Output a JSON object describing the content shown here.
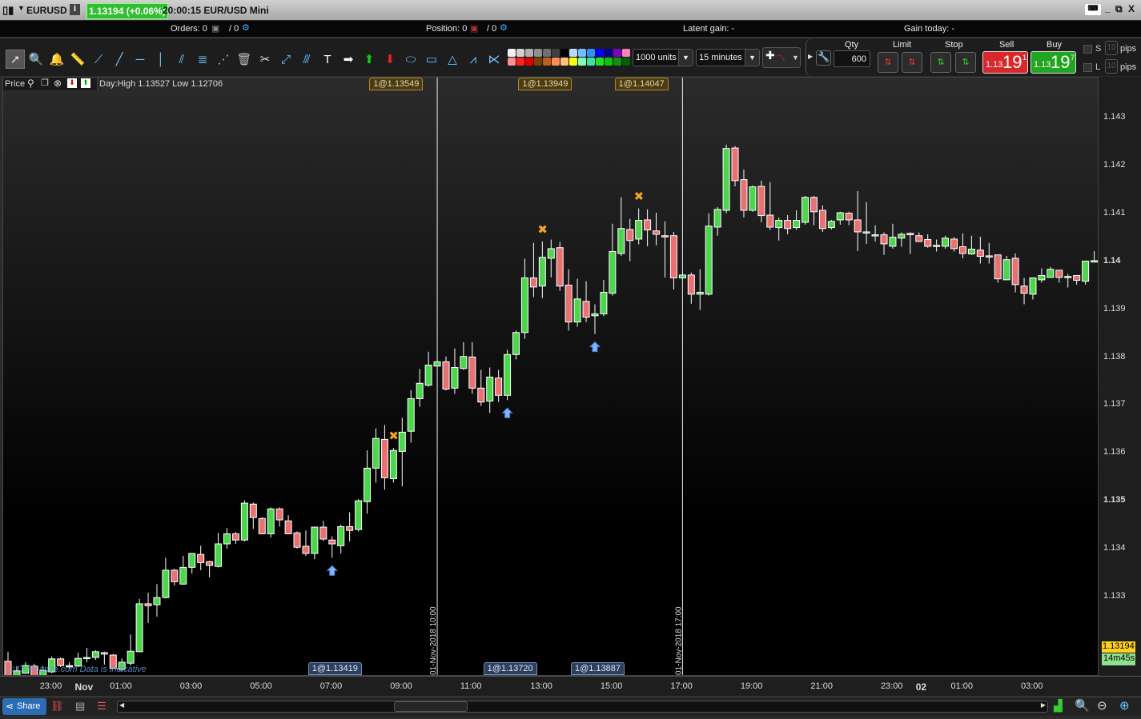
{
  "titlebar": {
    "symbol": "EURUSD",
    "quote": "1.13194 (+0.06%)",
    "time_name": "20:00:15 EUR/USD Mini",
    "quote_color": "#2fbf2f"
  },
  "infobar": {
    "orders_label": "Orders: 0",
    "orders_pending": "/ 0",
    "position_label": "Position: 0",
    "position_pending": "/ 0",
    "latent_gain": "Latent gain:  -",
    "gain_today": "Gain today:  -"
  },
  "toolbar": {
    "tools": [
      "pointer-icon",
      "magnifier-icon",
      "alarm-bell-icon",
      "ruler-icon",
      "segment-icon",
      "line-icon",
      "horizontal-line-icon",
      "vertical-line-icon",
      "channel-icon",
      "fibonacci-icon",
      "fan-icon",
      "trash-icon",
      "tools-icon",
      "point-icon",
      "parallel-icon",
      "text-icon",
      "arrow-right-icon",
      "arrow-up-green-icon",
      "arrow-down-red-icon",
      "ellipse-icon",
      "rectangle-icon",
      "triangle-icon",
      "trend-zone-icon",
      "wedge-icon"
    ],
    "palette_row1": [
      "#f2f2f2",
      "#d0d0d0",
      "#b0b0b0",
      "#909090",
      "#707070",
      "#404040",
      "#000000",
      "#b8d8ff",
      "#6cc0ff",
      "#3090ff",
      "#0000ff",
      "#000090",
      "#8000c0",
      "#ff80c0"
    ],
    "palette_row2": [
      "#ff9090",
      "#ff2020",
      "#e00000",
      "#804000",
      "#c06020",
      "#ff9050",
      "#ffc080",
      "#ffff00",
      "#80ffc0",
      "#40e0a0",
      "#20e020",
      "#10c010",
      "#109010",
      "#006000"
    ],
    "quantity": "1000 units",
    "timeframe": "15 minutes"
  },
  "order_panel": {
    "qty_label": "Qty",
    "qty_value": "600",
    "limit_label": "Limit",
    "stop_label": "Stop",
    "sell_label": "Sell",
    "buy_label": "Buy",
    "sell_prefix": "1.13",
    "sell_big": "19",
    "sell_sup": "1",
    "buy_prefix": "1.13",
    "buy_big": "19",
    "buy_sup": "7",
    "s_label": "S",
    "l_label": "L",
    "pips_label": "pips",
    "pips_value": "10",
    "sell_color": "#d8282c",
    "buy_color": "#1fa51f"
  },
  "chart_header": {
    "title": "Price",
    "day_range": "Day:High 1.13527 Low 1.12706"
  },
  "watermark": "© IT-Finance.com  Data is indicative",
  "price_tags": {
    "last": "1.13194",
    "countdown": "14m45s"
  },
  "bottombar": {
    "share": "Share"
  },
  "chart_data": {
    "type": "candlestick",
    "ylim": [
      1.13135,
      1.14385
    ],
    "y_ticks": [
      {
        "v": 1.143,
        "l": "1.143"
      },
      {
        "v": 1.142,
        "l": "1.142"
      },
      {
        "v": 1.141,
        "l": "1.141"
      },
      {
        "v": 1.14,
        "l": "1.14",
        "bold": true
      },
      {
        "v": 1.139,
        "l": "1.139"
      },
      {
        "v": 1.138,
        "l": "1.138"
      },
      {
        "v": 1.137,
        "l": "1.137"
      },
      {
        "v": 1.136,
        "l": "1.136"
      },
      {
        "v": 1.135,
        "l": "1.135",
        "bold": true
      },
      {
        "v": 1.134,
        "l": "1.134"
      },
      {
        "v": 1.133,
        "l": "1.133"
      }
    ],
    "x_ticks": [
      {
        "i": 5,
        "l": "23:00"
      },
      {
        "i": 9,
        "l": "Nov",
        "bold": true
      },
      {
        "i": 13,
        "l": "01:00"
      },
      {
        "i": 21,
        "l": "03:00"
      },
      {
        "i": 29,
        "l": "05:00"
      },
      {
        "i": 37,
        "l": "07:00"
      },
      {
        "i": 45,
        "l": "09:00"
      },
      {
        "i": 53,
        "l": "11:00"
      },
      {
        "i": 61,
        "l": "13:00"
      },
      {
        "i": 69,
        "l": "15:00"
      },
      {
        "i": 77,
        "l": "17:00"
      },
      {
        "i": 85,
        "l": "19:00"
      },
      {
        "i": 93,
        "l": "21:00"
      },
      {
        "i": 101,
        "l": "23:00"
      },
      {
        "i": 105,
        "l": "02",
        "bold": true
      },
      {
        "i": 109,
        "l": "01:00"
      },
      {
        "i": 117,
        "l": "03:00"
      }
    ],
    "up_color": "#4cd64c",
    "down_color": "#e87272",
    "ohlc": [
      [
        1.13167,
        1.13187,
        1.13137,
        1.13137
      ],
      [
        1.13137,
        1.13157,
        1.13137,
        1.13147
      ],
      [
        1.13142,
        1.13165,
        1.13142,
        1.13158
      ],
      [
        1.13157,
        1.13162,
        1.13137,
        1.13137
      ],
      [
        1.13137,
        1.13157,
        1.13137,
        1.13148
      ],
      [
        1.13145,
        1.13177,
        1.13142,
        1.13172
      ],
      [
        1.13172,
        1.13175,
        1.13155,
        1.13158
      ],
      [
        1.13158,
        1.13165,
        1.1315,
        1.13158
      ],
      [
        1.13157,
        1.13185,
        1.13155,
        1.13173
      ],
      [
        1.13175,
        1.13195,
        1.13165,
        1.13175
      ],
      [
        1.13175,
        1.1319,
        1.1317,
        1.13187
      ],
      [
        1.13185,
        1.13187,
        1.1316,
        1.13182
      ],
      [
        1.1318,
        1.13182,
        1.13152,
        1.13152
      ],
      [
        1.1315,
        1.13173,
        1.13145,
        1.13165
      ],
      [
        1.13163,
        1.13223,
        1.13158,
        1.13188
      ],
      [
        1.13187,
        1.13297,
        1.13187,
        1.13287
      ],
      [
        1.13287,
        1.1331,
        1.13247,
        1.13283
      ],
      [
        1.13285,
        1.13328,
        1.1326,
        1.133
      ],
      [
        1.133,
        1.13383,
        1.13298,
        1.13357
      ],
      [
        1.13357,
        1.1336,
        1.13325,
        1.13333
      ],
      [
        1.13328,
        1.13387,
        1.13327,
        1.13363
      ],
      [
        1.13363,
        1.13393,
        1.1335,
        1.13392
      ],
      [
        1.1339,
        1.13408,
        1.13357,
        1.13373
      ],
      [
        1.13375,
        1.13377,
        1.13342,
        1.13367
      ],
      [
        1.13365,
        1.13435,
        1.13363,
        1.13412
      ],
      [
        1.13412,
        1.13445,
        1.13402,
        1.13433
      ],
      [
        1.13433,
        1.13437,
        1.13412,
        1.1342
      ],
      [
        1.1342,
        1.13503,
        1.13417,
        1.13497
      ],
      [
        1.13495,
        1.13498,
        1.13443,
        1.13467
      ],
      [
        1.13465,
        1.13468,
        1.13432,
        1.13433
      ],
      [
        1.13433,
        1.13488,
        1.13425,
        1.13485
      ],
      [
        1.13485,
        1.13488,
        1.13448,
        1.13462
      ],
      [
        1.1346,
        1.13472,
        1.13432,
        1.13433
      ],
      [
        1.13435,
        1.13438,
        1.13402,
        1.13405
      ],
      [
        1.13407,
        1.1344,
        1.13387,
        1.13392
      ],
      [
        1.13392,
        1.13448,
        1.1338,
        1.13447
      ],
      [
        1.13447,
        1.1346,
        1.13418,
        1.13422
      ],
      [
        1.1342,
        1.13428,
        1.13383,
        1.13412
      ],
      [
        1.13408,
        1.13452,
        1.13392,
        1.13448
      ],
      [
        1.13448,
        1.13478,
        1.13417,
        1.1344
      ],
      [
        1.13442,
        1.13505,
        1.13438,
        1.13502
      ],
      [
        1.135,
        1.13607,
        1.13475,
        1.1357
      ],
      [
        1.1357,
        1.13653,
        1.1354,
        1.13632
      ],
      [
        1.1363,
        1.1366,
        1.13525,
        1.1355
      ],
      [
        1.13548,
        1.13612,
        1.1354,
        1.13607
      ],
      [
        1.13605,
        1.13675,
        1.13532,
        1.13645
      ],
      [
        1.13647,
        1.13733,
        1.13623,
        1.13715
      ],
      [
        1.13715,
        1.13777,
        1.13698,
        1.13747
      ],
      [
        1.13743,
        1.13813,
        1.1374,
        1.13785
      ],
      [
        1.13783,
        1.13797,
        1.13782,
        1.13792
      ],
      [
        1.13792,
        1.13803,
        1.13732,
        1.13735
      ],
      [
        1.13737,
        1.1382,
        1.13725,
        1.1378
      ],
      [
        1.13778,
        1.13833,
        1.13775,
        1.13803
      ],
      [
        1.13802,
        1.13833,
        1.13725,
        1.13737
      ],
      [
        1.13737,
        1.13775,
        1.137,
        1.13708
      ],
      [
        1.1371,
        1.1378,
        1.13685,
        1.1376
      ],
      [
        1.13758,
        1.13775,
        1.13708,
        1.13722
      ],
      [
        1.13722,
        1.13817,
        1.13712,
        1.13807
      ],
      [
        1.13807,
        1.13857,
        1.13797,
        1.13853
      ],
      [
        1.13853,
        1.14007,
        1.1384,
        1.13967
      ],
      [
        1.13967,
        1.1404,
        1.13927,
        1.13948
      ],
      [
        1.1395,
        1.14043,
        1.13925,
        1.1401
      ],
      [
        1.14008,
        1.14047,
        1.13968,
        1.14028
      ],
      [
        1.1403,
        1.14042,
        1.1394,
        1.1395
      ],
      [
        1.13952,
        1.13985,
        1.13857,
        1.13875
      ],
      [
        1.13875,
        1.13965,
        1.13865,
        1.13923
      ],
      [
        1.13918,
        1.1396,
        1.13875,
        1.13885
      ],
      [
        1.13888,
        1.13912,
        1.1385,
        1.13892
      ],
      [
        1.13892,
        1.13963,
        1.13887,
        1.13937
      ],
      [
        1.13935,
        1.1408,
        1.1393,
        1.14022
      ],
      [
        1.14018,
        1.14135,
        1.14013,
        1.1407
      ],
      [
        1.14068,
        1.1409,
        1.14002,
        1.14045
      ],
      [
        1.14048,
        1.14112,
        1.14037,
        1.14087
      ],
      [
        1.14088,
        1.1411,
        1.14033,
        1.14067
      ],
      [
        1.14065,
        1.14103,
        1.14035,
        1.14058
      ],
      [
        1.14055,
        1.14085,
        1.13968,
        1.14053
      ],
      [
        1.14055,
        1.14063,
        1.13943,
        1.13967
      ],
      [
        1.13967,
        1.13977,
        1.13965,
        1.13973
      ],
      [
        1.13973,
        1.13978,
        1.13913,
        1.13933
      ],
      [
        1.13933,
        1.13985,
        1.139,
        1.13937
      ],
      [
        1.13933,
        1.14102,
        1.1393,
        1.14075
      ],
      [
        1.14073,
        1.14115,
        1.14055,
        1.1411
      ],
      [
        1.14108,
        1.14245,
        1.14102,
        1.14237
      ],
      [
        1.14238,
        1.14242,
        1.14158,
        1.1417
      ],
      [
        1.14172,
        1.14193,
        1.14093,
        1.14108
      ],
      [
        1.14108,
        1.1416,
        1.14105,
        1.14157
      ],
      [
        1.14158,
        1.1417,
        1.14083,
        1.14097
      ],
      [
        1.14098,
        1.14167,
        1.14067,
        1.14073
      ],
      [
        1.14072,
        1.14093,
        1.14045,
        1.14087
      ],
      [
        1.14087,
        1.14098,
        1.14058,
        1.1407
      ],
      [
        1.14072,
        1.14108,
        1.14067,
        1.14087
      ],
      [
        1.14083,
        1.14138,
        1.14078,
        1.14135
      ],
      [
        1.14135,
        1.14138,
        1.14077,
        1.14105
      ],
      [
        1.14108,
        1.14118,
        1.14063,
        1.1407
      ],
      [
        1.14072,
        1.14088,
        1.14068,
        1.14085
      ],
      [
        1.14088,
        1.14105,
        1.14078,
        1.14103
      ],
      [
        1.14102,
        1.14105,
        1.14077,
        1.14088
      ],
      [
        1.14088,
        1.14148,
        1.14023,
        1.14063
      ],
      [
        1.14063,
        1.14125,
        1.14038,
        1.14063
      ],
      [
        1.14057,
        1.14077,
        1.14043,
        1.14057
      ],
      [
        1.14057,
        1.14062,
        1.14015,
        1.14038
      ],
      [
        1.14033,
        1.1408,
        1.14028,
        1.14052
      ],
      [
        1.1405,
        1.14062,
        1.14032,
        1.14058
      ],
      [
        1.1406,
        1.14062,
        1.14017,
        1.14057
      ],
      [
        1.14055,
        1.14062,
        1.14042,
        1.14043
      ],
      [
        1.14047,
        1.14058,
        1.1403,
        1.14033
      ],
      [
        1.14035,
        1.14047,
        1.14022,
        1.14035
      ],
      [
        1.14033,
        1.14055,
        1.14028,
        1.1405
      ],
      [
        1.14048,
        1.14052,
        1.14022,
        1.14028
      ],
      [
        1.14032,
        1.1406,
        1.14008,
        1.14018
      ],
      [
        1.14017,
        1.14055,
        1.14015,
        1.14027
      ],
      [
        1.14025,
        1.14053,
        1.13997,
        1.14012
      ],
      [
        1.14013,
        1.1404,
        1.13997,
        1.14013
      ],
      [
        1.14015,
        1.14015,
        1.13957,
        1.13965
      ],
      [
        1.13963,
        1.14013,
        1.13963,
        1.14005
      ],
      [
        1.14008,
        1.14018,
        1.13937,
        1.13953
      ],
      [
        1.1395,
        1.13967,
        1.13912,
        1.13935
      ],
      [
        1.13933,
        1.13967,
        1.13922,
        1.13967
      ],
      [
        1.13963,
        1.13987,
        1.13957,
        1.13972
      ],
      [
        1.13968,
        1.1399,
        1.13968,
        1.13985
      ],
      [
        1.13983,
        1.13983,
        1.13957,
        1.13968
      ],
      [
        1.1397,
        1.13975,
        1.13947,
        1.1397
      ],
      [
        1.13972,
        1.13972,
        1.13953,
        1.13962
      ],
      [
        1.1396,
        1.14003,
        1.13953,
        1.14002
      ],
      [
        1.14,
        1.14023,
        1.14,
        1.14003
      ]
    ],
    "session_lines": [
      {
        "i": 49,
        "label": "01-Nov-2018 10:00"
      },
      {
        "i": 77,
        "label": "01-Nov-2018 17:00"
      }
    ],
    "buy_markers": [
      {
        "i": 37,
        "label": "1@1.13419"
      },
      {
        "i": 57,
        "label": "1@1.13720"
      },
      {
        "i": 67,
        "label": "1@1.13887"
      }
    ],
    "sell_markers": [
      {
        "i": 44,
        "label": "1@1.13549"
      },
      {
        "i": 61,
        "label": "1@1.13949"
      },
      {
        "i": 72,
        "label": "1@1.14047"
      }
    ],
    "last_price": 1.13194
  }
}
